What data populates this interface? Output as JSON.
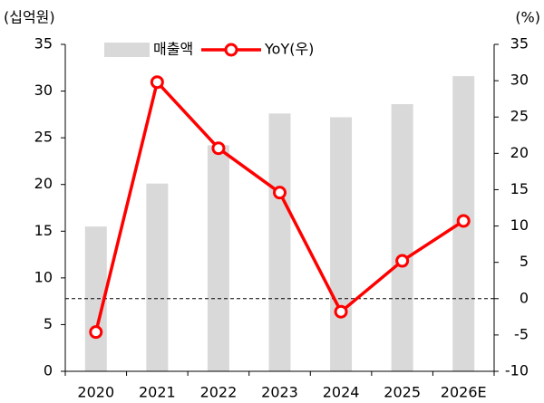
{
  "chart_data": {
    "type": "bar_line",
    "y_label": "(십억원)",
    "y2_label": "(%)",
    "categories": [
      "2020",
      "2021",
      "2022",
      "2023",
      "2024",
      "2025",
      "2026E"
    ],
    "series": [
      {
        "name": "매출액",
        "type": "bar",
        "color": "#d9d9d9",
        "values": [
          15.5,
          20.1,
          24.2,
          27.6,
          27.2,
          28.6,
          31.6
        ]
      },
      {
        "name": "YoY(우)",
        "type": "line",
        "axis": "y2",
        "color": "#ff0000",
        "values": [
          -4.6,
          29.8,
          20.7,
          14.6,
          -1.8,
          5.2,
          10.7
        ]
      }
    ],
    "ylim": [
      0,
      35
    ],
    "yticks": [
      0,
      5,
      10,
      15,
      20,
      25,
      30,
      35
    ],
    "y2lim": [
      -10,
      35
    ],
    "y2ticks": [
      -10,
      -5,
      0,
      5,
      10,
      15,
      20,
      25,
      30,
      35
    ],
    "reference_line": {
      "axis": "y2",
      "value": 0
    },
    "legend": "top"
  }
}
